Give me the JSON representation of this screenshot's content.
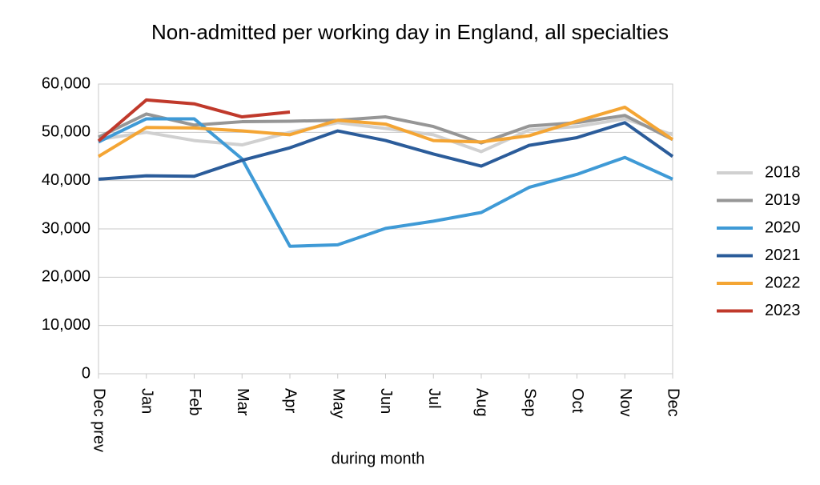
{
  "chart_data": {
    "type": "line",
    "title": "Non-admitted per working day in England, all specialties",
    "x_label": "during  month",
    "categories": [
      "Dec prev",
      "Jan",
      "Feb",
      "Mar",
      "Apr",
      "May",
      "Jun",
      "Jul",
      "Aug",
      "Sep",
      "Oct",
      "Nov",
      "Dec"
    ],
    "series": [
      {
        "name": "2018",
        "color": "#d0d0d0",
        "values": [
          48500,
          50000,
          48300,
          47400,
          50000,
          52000,
          50800,
          49500,
          46000,
          50500,
          51200,
          52800,
          49500
        ]
      },
      {
        "name": "2019",
        "color": "#969696",
        "values": [
          49000,
          53800,
          51500,
          52200,
          52300,
          52500,
          53200,
          51200,
          47800,
          51300,
          52000,
          53500,
          48500
        ]
      },
      {
        "name": "2020",
        "color": "#3f9ad6",
        "values": [
          48000,
          52800,
          52800,
          44500,
          26400,
          26700,
          30100,
          31600,
          33400,
          38600,
          41300,
          44800,
          40300
        ]
      },
      {
        "name": "2021",
        "color": "#2b5c9a",
        "values": [
          40300,
          41000,
          40900,
          44200,
          46800,
          50300,
          48300,
          45500,
          43000,
          47300,
          48900,
          52000,
          45000
        ]
      },
      {
        "name": "2022",
        "color": "#f4a534",
        "values": [
          45000,
          51000,
          50900,
          50300,
          49500,
          52500,
          51700,
          48300,
          48000,
          49300,
          52300,
          55200,
          48500
        ]
      },
      {
        "name": "2023",
        "color": "#c0392b",
        "values": [
          48200,
          56700,
          55900,
          53200,
          54200,
          null,
          null,
          null,
          null,
          null,
          null,
          null,
          null
        ]
      }
    ],
    "ylim": [
      0,
      60000
    ],
    "yticks": [
      0,
      {
        "value": 10000,
        "label": "10,000"
      },
      {
        "value": 20000,
        "label": "20,000"
      },
      {
        "value": 30000,
        "label": "30,000"
      },
      {
        "value": 40000,
        "label": "40,000"
      },
      {
        "value": 50000,
        "label": "50,000"
      },
      {
        "value": 60000,
        "label": "60,000"
      }
    ],
    "grid": true,
    "legend": "right"
  }
}
